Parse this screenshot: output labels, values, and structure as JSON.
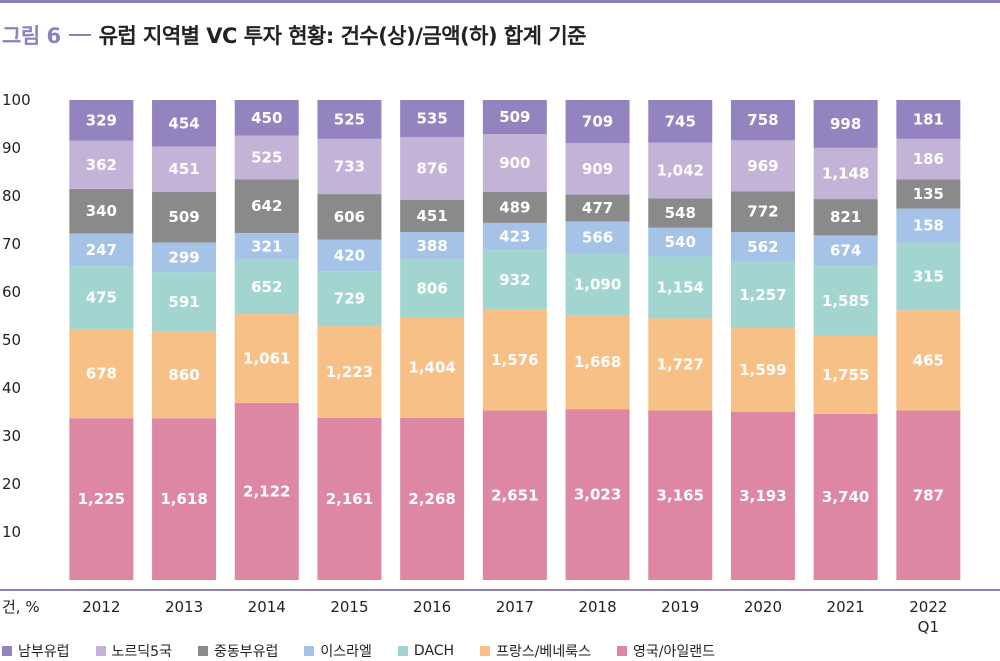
{
  "title": {
    "prefix": "그림 6",
    "text": "유럽 지역별 VC 투자 현황: 건수(상)/금액(하) 합계 기준"
  },
  "colors": {
    "accent": "#8e7fba",
    "axis": "#8e7fba",
    "segment_label": "#ffffff"
  },
  "chart_data": {
    "type": "bar",
    "stacked": true,
    "normalized_percent": true,
    "y_unit_label": "건, %",
    "ylim": [
      0,
      100
    ],
    "y_ticks": [
      10,
      20,
      30,
      40,
      50,
      60,
      70,
      80,
      90,
      100
    ],
    "grid": false,
    "legend_position": "bottom",
    "categories": [
      "2012",
      "2013",
      "2014",
      "2015",
      "2016",
      "2017",
      "2018",
      "2019",
      "2020",
      "2021",
      "2022\nQ1"
    ],
    "series": [
      {
        "name": "영국/아일랜드",
        "color": "#dd87a3",
        "shares": [
          33.7,
          33.7,
          36.9,
          33.8,
          33.8,
          35.3,
          35.6,
          35.3,
          35.0,
          34.7,
          35.3
        ],
        "labels": [
          "1,225",
          "1,618",
          "2,122",
          "2,161",
          "2,268",
          "2,651",
          "3,023",
          "3,165",
          "3,193",
          "3,740",
          "787"
        ]
      },
      {
        "name": "프랑스/베네룩스",
        "color": "#f7c087",
        "shares": [
          18.6,
          18.0,
          18.5,
          19.1,
          20.9,
          21.0,
          19.6,
          19.2,
          17.5,
          16.3,
          20.9
        ],
        "labels": [
          "678",
          "860",
          "1,061",
          "1,223",
          "1,404",
          "1,576",
          "1,668",
          "1,727",
          "1,599",
          "1,755",
          "465"
        ]
      },
      {
        "name": "DACH",
        "color": "#a3d5d0",
        "shares": [
          13.1,
          12.4,
          11.3,
          11.4,
          12.0,
          12.5,
          12.8,
          12.9,
          13.8,
          14.7,
          14.1
        ],
        "labels": [
          "475",
          "591",
          "652",
          "729",
          "806",
          "932",
          "1,090",
          "1,154",
          "1,257",
          "1,585",
          "315"
        ]
      },
      {
        "name": "이스라엘",
        "color": "#a5c3e6",
        "shares": [
          6.8,
          6.2,
          5.6,
          6.6,
          5.8,
          5.6,
          6.7,
          6.0,
          6.2,
          6.3,
          7.1
        ],
        "labels": [
          "247",
          "299",
          "321",
          "420",
          "388",
          "423",
          "566",
          "540",
          "562",
          "674",
          "158"
        ]
      },
      {
        "name": "중동부유럽",
        "color": "#8a8a8a",
        "shares": [
          9.3,
          10.6,
          11.2,
          9.5,
          6.7,
          6.5,
          5.6,
          6.1,
          8.5,
          7.6,
          6.1
        ],
        "labels": [
          "340",
          "509",
          "642",
          "606",
          "451",
          "489",
          "477",
          "548",
          "772",
          "821",
          "135"
        ]
      },
      {
        "name": "노르딕5국",
        "color": "#c3b3d6",
        "shares": [
          10.0,
          9.4,
          9.1,
          11.5,
          13.1,
          12.0,
          10.7,
          11.6,
          10.6,
          10.7,
          8.4
        ],
        "labels": [
          "362",
          "451",
          "525",
          "733",
          "876",
          "900",
          "909",
          "1,042",
          "969",
          "1,148",
          "186"
        ]
      },
      {
        "name": "남부유럽",
        "color": "#9384bf",
        "shares": [
          8.5,
          9.7,
          7.4,
          8.1,
          7.7,
          7.1,
          9.0,
          8.9,
          8.4,
          10.0,
          8.1
        ],
        "labels": [
          "329",
          "454",
          "450",
          "525",
          "535",
          "509",
          "709",
          "745",
          "758",
          "998",
          "181"
        ]
      }
    ]
  },
  "legend_order": [
    "남부유럽",
    "노르딕5국",
    "중동부유럽",
    "이스라엘",
    "DACH",
    "프랑스/베네룩스",
    "영국/아일랜드"
  ]
}
